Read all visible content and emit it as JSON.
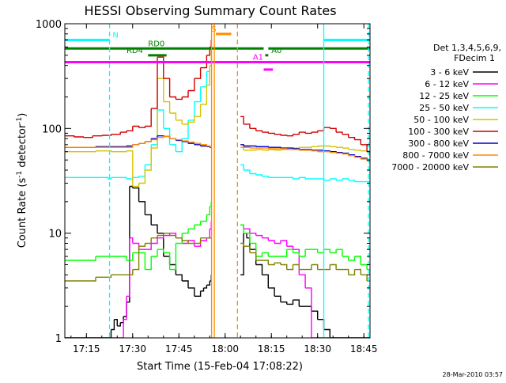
{
  "chart_data": {
    "type": "line",
    "title": "HESSI Observing Summary Count Rates",
    "xlabel": "Start Time (15-Feb-04 17:08:22)",
    "ylabel_main": "Count Rate (s",
    "ylabel_sup": "-1",
    "ylabel_tail": " detector",
    "ylabel_end": ")",
    "yscale": "log",
    "ylim": [
      1,
      1000
    ],
    "xlim_minutes": [
      0,
      99
    ],
    "x_ticks": [
      {
        "t": 7,
        "label": "17:15"
      },
      {
        "t": 22,
        "label": "17:30"
      },
      {
        "t": 37,
        "label": "17:45"
      },
      {
        "t": 52,
        "label": "18:00"
      },
      {
        "t": 67,
        "label": "18:15"
      },
      {
        "t": 82,
        "label": "18:30"
      },
      {
        "t": 97,
        "label": "18:45"
      }
    ],
    "y_ticks": [
      {
        "v": 1,
        "label": "1"
      },
      {
        "v": 10,
        "label": "10"
      },
      {
        "v": 100,
        "label": "100"
      },
      {
        "v": 1000,
        "label": "1000"
      }
    ],
    "legend_header": [
      "Det 1,3,4,5,6,9,",
      "FDecim 1"
    ],
    "series": [
      {
        "name": "3 - 6 keV",
        "color": "#000000",
        "x": [
          0,
          5,
          10,
          14,
          15,
          16,
          17,
          18,
          19,
          20,
          21,
          22,
          24,
          26,
          28,
          30,
          32,
          34,
          36,
          38,
          40,
          42,
          44,
          45,
          46,
          47,
          47.5,
          57,
          58,
          59,
          60,
          62,
          64,
          66,
          68,
          70,
          72,
          74,
          76,
          78,
          80,
          82,
          84,
          86,
          88,
          90,
          92,
          94,
          96,
          98,
          99
        ],
        "y": [
          1,
          1,
          1,
          1,
          1.2,
          1.5,
          1.3,
          1.4,
          1.6,
          2.2,
          28,
          27,
          20,
          15,
          12,
          10,
          6,
          5,
          4,
          3.5,
          3,
          2.5,
          2.8,
          3,
          3.2,
          3.5,
          4,
          4,
          10,
          9,
          7,
          5,
          4,
          3,
          2.5,
          2.2,
          2.1,
          2.3,
          2,
          2,
          1.8,
          1.5,
          1.2,
          1,
          1,
          1,
          1,
          1,
          1,
          1,
          1
        ]
      },
      {
        "name": "6 - 12 keV",
        "color": "#ff00ff",
        "x": [
          0,
          5,
          10,
          15,
          18,
          19,
          20,
          21,
          22,
          24,
          26,
          28,
          30,
          32,
          34,
          36,
          38,
          40,
          42,
          44,
          46,
          47,
          47.5,
          57,
          58,
          60,
          62,
          64,
          66,
          68,
          70,
          72,
          74,
          76,
          78,
          80,
          82,
          84,
          86,
          88,
          90,
          92,
          94,
          96,
          98,
          99
        ],
        "y": [
          1,
          1,
          1,
          1,
          1,
          1.5,
          2.5,
          9,
          8,
          7,
          7,
          8,
          9,
          9.5,
          10,
          9,
          8,
          8.5,
          7.5,
          8.5,
          9,
          11,
          13,
          12,
          11,
          10,
          9.5,
          9,
          8.5,
          8,
          8.5,
          7.5,
          7,
          4,
          3,
          1,
          1,
          1,
          1,
          1,
          1,
          1,
          1,
          1,
          1,
          1
        ]
      },
      {
        "name": "12 - 25 keV",
        "color": "#00ff00",
        "x": [
          0,
          5,
          10,
          15,
          20,
          22,
          24,
          26,
          28,
          30,
          32,
          34,
          36,
          38,
          40,
          42,
          44,
          46,
          47,
          47.5,
          57,
          58,
          60,
          62,
          64,
          66,
          68,
          70,
          72,
          74,
          76,
          78,
          80,
          82,
          84,
          86,
          88,
          90,
          92,
          94,
          96,
          98,
          99
        ],
        "y": [
          5.5,
          5.5,
          6,
          6,
          5.5,
          6.5,
          6.5,
          4.5,
          6,
          7,
          6.5,
          4.5,
          8,
          10,
          11,
          12,
          13,
          15,
          18,
          20,
          12,
          10,
          8,
          6,
          6.5,
          6,
          6,
          6,
          7,
          6.5,
          6,
          7,
          7,
          6.5,
          7,
          6.5,
          7,
          6,
          5.5,
          6,
          5,
          4.5,
          4
        ]
      },
      {
        "name": "25 - 50 keV",
        "color": "#00ffff",
        "x": [
          0,
          5,
          10,
          14,
          15,
          18,
          20,
          22,
          24,
          26,
          28,
          30,
          32,
          34,
          36,
          38,
          40,
          42,
          44,
          46,
          47,
          47.5,
          57,
          58,
          60,
          62,
          64,
          66,
          68,
          70,
          72,
          74,
          76,
          78,
          80,
          82,
          84,
          86,
          88,
          90,
          92,
          94,
          96,
          98,
          99
        ],
        "y": [
          34,
          34,
          34,
          33,
          34,
          34,
          33,
          34,
          35,
          45,
          70,
          150,
          100,
          70,
          60,
          80,
          120,
          180,
          250,
          350,
          400,
          480,
          45,
          40,
          37,
          36,
          35,
          34,
          34,
          34,
          34,
          33,
          34,
          33,
          33,
          33,
          32,
          33,
          32,
          33,
          32,
          31,
          31,
          31,
          31
        ]
      },
      {
        "name": "50 - 100 keV",
        "color": "#d4c400",
        "x": [
          0,
          5,
          10,
          15,
          20,
          22,
          24,
          26,
          28,
          30,
          32,
          34,
          36,
          38,
          40,
          42,
          44,
          46,
          47,
          47.5,
          57,
          58,
          60,
          62,
          64,
          66,
          68,
          70,
          72,
          74,
          76,
          78,
          80,
          82,
          84,
          86,
          88,
          90,
          92,
          94,
          96,
          98,
          99
        ],
        "y": [
          60,
          60,
          61,
          60,
          61,
          28,
          30,
          40,
          65,
          300,
          180,
          140,
          120,
          110,
          115,
          130,
          170,
          260,
          400,
          650,
          70,
          62,
          62,
          63,
          62,
          63,
          62,
          63,
          65,
          65,
          66,
          66,
          67,
          68,
          68,
          67,
          66,
          65,
          63,
          62,
          61,
          61,
          60
        ]
      },
      {
        "name": "100 - 300 keV",
        "color": "#d00000",
        "x": [
          0,
          3,
          6,
          9,
          12,
          15,
          18,
          20,
          22,
          24,
          26,
          28,
          30,
          32,
          34,
          36,
          38,
          40,
          42,
          44,
          46,
          47,
          47.5,
          57,
          58,
          60,
          62,
          64,
          66,
          68,
          70,
          72,
          74,
          76,
          78,
          80,
          82,
          84,
          86,
          88,
          90,
          92,
          94,
          96,
          98,
          99
        ],
        "y": [
          85,
          83,
          82,
          85,
          86,
          88,
          92,
          95,
          105,
          102,
          105,
          155,
          480,
          300,
          200,
          190,
          200,
          230,
          300,
          380,
          500,
          600,
          700,
          130,
          110,
          100,
          95,
          92,
          90,
          88,
          86,
          85,
          88,
          92,
          90,
          92,
          95,
          102,
          100,
          92,
          88,
          82,
          78,
          70,
          60,
          55
        ]
      },
      {
        "name": "300 - 800 keV",
        "color": "#0000cc",
        "x": [
          0,
          5,
          10,
          15,
          20,
          22,
          24,
          26,
          28,
          30,
          32,
          34,
          36,
          38,
          40,
          42,
          44,
          46,
          47,
          47.5,
          57,
          58,
          60,
          62,
          64,
          66,
          68,
          70,
          72,
          74,
          76,
          78,
          80,
          82,
          84,
          86,
          88,
          90,
          92,
          94,
          96,
          98,
          99
        ],
        "y": [
          66,
          66,
          67,
          67,
          68,
          70,
          72,
          75,
          80,
          85,
          84,
          80,
          77,
          75,
          72,
          70,
          68,
          67,
          66,
          66,
          70,
          68,
          68,
          67,
          67,
          66,
          66,
          65,
          65,
          64,
          63,
          63,
          62,
          62,
          61,
          60,
          59,
          58,
          56,
          54,
          52,
          50,
          48
        ]
      },
      {
        "name": "800 - 7000 keV",
        "color": "#ff8c00",
        "x": [
          0,
          5,
          10,
          15,
          20,
          22,
          24,
          26,
          28,
          30,
          32,
          34,
          36,
          38,
          40,
          42,
          44,
          46,
          47,
          47.5,
          57,
          58,
          60,
          62,
          64,
          66,
          68,
          70,
          72,
          74,
          76,
          78,
          80,
          82,
          84,
          86,
          88,
          90,
          92,
          94,
          96,
          98,
          99
        ],
        "y": [
          66,
          66,
          66,
          66,
          66,
          70,
          72,
          75,
          78,
          82,
          84,
          80,
          78,
          76,
          74,
          72,
          70,
          68,
          67,
          66,
          66,
          66,
          65,
          65,
          65,
          64,
          64,
          64,
          63,
          63,
          62,
          62,
          61,
          60,
          60,
          59,
          58,
          57,
          55,
          53,
          51,
          49,
          47
        ]
      },
      {
        "name": "7000 - 20000 keV",
        "color": "#808000",
        "x": [
          0,
          5,
          10,
          15,
          20,
          22,
          24,
          26,
          28,
          30,
          32,
          34,
          36,
          38,
          40,
          42,
          44,
          46,
          47,
          47.5,
          57,
          58,
          60,
          62,
          64,
          66,
          68,
          70,
          72,
          74,
          76,
          78,
          80,
          82,
          84,
          86,
          88,
          90,
          92,
          94,
          96,
          98,
          99
        ],
        "y": [
          3.5,
          3.5,
          3.8,
          4,
          4,
          4.5,
          7.5,
          8,
          9,
          9.5,
          10,
          9.5,
          9,
          8.5,
          8,
          8,
          9,
          9,
          9,
          9,
          8,
          7.5,
          6.5,
          5.5,
          5.5,
          5,
          5.2,
          5,
          4.5,
          5,
          4.5,
          4.5,
          5,
          4.5,
          4.5,
          5,
          4.5,
          4.5,
          4,
          4.5,
          4,
          3.5,
          3.5
        ]
      }
    ],
    "flags": [
      {
        "label": "N",
        "color": "#00ffff",
        "segments": [
          [
            0,
            14.5
          ],
          [
            84,
            99
          ]
        ],
        "level": 700
      },
      {
        "label": "RD0",
        "color": "#008000",
        "segments": [
          [
            0,
            64.5
          ],
          [
            66,
            99
          ]
        ],
        "level": 580,
        "label_t": 27
      },
      {
        "label": "RD4",
        "color": "#008000",
        "segments": [
          [
            27,
            33
          ]
        ],
        "level": 500,
        "label_t": 20
      },
      {
        "label": "A0",
        "color": "#008000",
        "segments": [
          [
            65,
            66
          ]
        ],
        "level": 500,
        "label_t": 67
      },
      {
        "label": "A1",
        "color": "#ff00ff",
        "segments": [
          [
            0,
            99
          ]
        ],
        "level": 430,
        "label_t": 61
      },
      {
        "label": "",
        "color": "#ff00ff",
        "segments": [
          [
            64.5,
            67.5
          ]
        ],
        "level": 365
      },
      {
        "label": "S",
        "color": "#ff8c00",
        "segments": [
          [
            49,
            54
          ]
        ],
        "level": 800,
        "label_t": 47.5
      }
    ],
    "vlines": [
      {
        "t": 14.5,
        "color": "#00ffff",
        "dash": true
      },
      {
        "t": 84,
        "color": "#00ffff",
        "dash": false
      },
      {
        "t": 98.5,
        "color": "#00ffff",
        "dash": true
      },
      {
        "t": 47.6,
        "color": "#ff8c00",
        "dash": false
      },
      {
        "t": 48.5,
        "color": "#ff8c00",
        "dash": false
      },
      {
        "t": 56,
        "color": "#ff8c00",
        "dash": true
      }
    ]
  },
  "footer_timestamp": "28-Mar-2010 03:57"
}
